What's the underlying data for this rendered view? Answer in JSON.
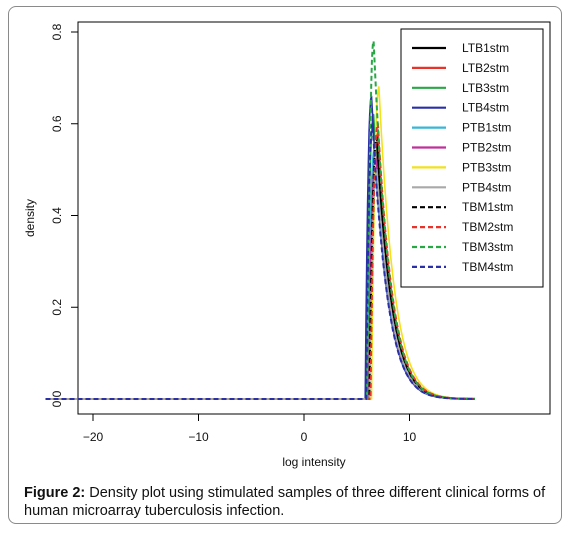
{
  "chart_data": {
    "type": "line",
    "xlabel": "log intensity",
    "ylabel": "density",
    "xlim": [
      -25,
      16.5
    ],
    "ylim": [
      0,
      0.8
    ],
    "xticks": [
      -20,
      -10,
      0,
      10
    ],
    "yticks": [
      0.0,
      0.2,
      0.4,
      0.6,
      0.8
    ],
    "xtick_labels": [
      "−20",
      "−10",
      "0",
      "10"
    ],
    "ytick_labels": [
      "0.0",
      "0.2",
      "0.4",
      "0.6",
      "0.8"
    ],
    "legend_position": "top-right",
    "grid": false,
    "series": [
      {
        "name": "LTB1stm",
        "color": "#000000",
        "dash": "solid",
        "min": -24.5,
        "start": 6.1,
        "peak_x": 6.9,
        "peak_y": 0.56,
        "end": 16.2
      },
      {
        "name": "LTB2stm",
        "color": "#e8322a",
        "dash": "solid",
        "min": -24.5,
        "start": 6.2,
        "peak_x": 7.0,
        "peak_y": 0.58,
        "end": 16.2
      },
      {
        "name": "LTB3stm",
        "color": "#28a745",
        "dash": "solid",
        "min": -24.5,
        "start": 5.9,
        "peak_x": 6.6,
        "peak_y": 0.62,
        "end": 16.2
      },
      {
        "name": "LTB4stm",
        "color": "#2a2fa8",
        "dash": "solid",
        "min": -24.5,
        "start": 5.8,
        "peak_x": 6.4,
        "peak_y": 0.66,
        "end": 16.2
      },
      {
        "name": "PTB1stm",
        "color": "#37b6d6",
        "dash": "solid",
        "min": -24.5,
        "start": 6.0,
        "peak_x": 6.7,
        "peak_y": 0.55,
        "end": 16.2
      },
      {
        "name": "PTB2stm",
        "color": "#c0309a",
        "dash": "solid",
        "min": -24.5,
        "start": 6.1,
        "peak_x": 6.8,
        "peak_y": 0.53,
        "end": 16.2
      },
      {
        "name": "PTB3stm",
        "color": "#f2e21a",
        "dash": "solid",
        "min": -24.5,
        "start": 6.4,
        "peak_x": 7.1,
        "peak_y": 0.68,
        "end": 16.2
      },
      {
        "name": "PTB4stm",
        "color": "#a9a9a9",
        "dash": "solid",
        "min": -24.5,
        "start": 6.2,
        "peak_x": 6.9,
        "peak_y": 0.5,
        "end": 16.2
      },
      {
        "name": "TBM1stm",
        "color": "#000000",
        "dash": "dashed",
        "min": -24.5,
        "start": 6.2,
        "peak_x": 6.9,
        "peak_y": 0.57,
        "end": 16.2
      },
      {
        "name": "TBM2stm",
        "color": "#e8322a",
        "dash": "dashed",
        "min": -24.5,
        "start": 6.3,
        "peak_x": 7.0,
        "peak_y": 0.6,
        "end": 16.2
      },
      {
        "name": "TBM3stm",
        "color": "#28a745",
        "dash": "dashed",
        "min": -24.5,
        "start": 6.0,
        "peak_x": 6.6,
        "peak_y": 0.78,
        "end": 16.2
      },
      {
        "name": "TBM4stm",
        "color": "#2a2fa8",
        "dash": "dashed",
        "min": -24.5,
        "start": 5.9,
        "peak_x": 6.5,
        "peak_y": 0.6,
        "end": 16.2
      }
    ]
  },
  "caption": {
    "label": "Figure 2:",
    "text": " Density plot using stimulated samples of three different clinical forms of human microarray tuberculosis infection."
  }
}
